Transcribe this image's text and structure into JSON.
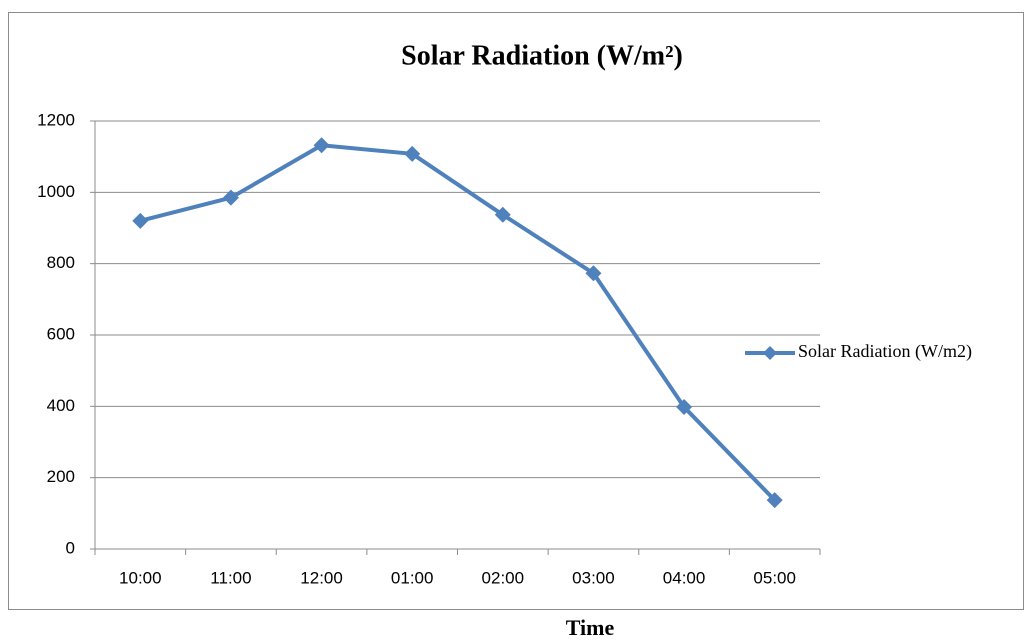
{
  "chart_data": {
    "type": "line",
    "title": "Solar Radiation (W/m²)",
    "x_label": "Time",
    "categories": [
      "10:00",
      "11:00",
      "12:00",
      "01:00",
      "02:00",
      "03:00",
      "04:00",
      "05:00"
    ],
    "series": [
      {
        "name": "Solar Radiation (W/m2)",
        "color": "#4f81bd",
        "values": [
          920,
          985,
          1132,
          1108,
          937,
          773,
          398,
          137
        ]
      }
    ],
    "ylim": [
      0,
      1200
    ],
    "yticks": [
      0,
      200,
      400,
      600,
      800,
      1000,
      1200
    ],
    "grid": true,
    "legend": "right"
  }
}
